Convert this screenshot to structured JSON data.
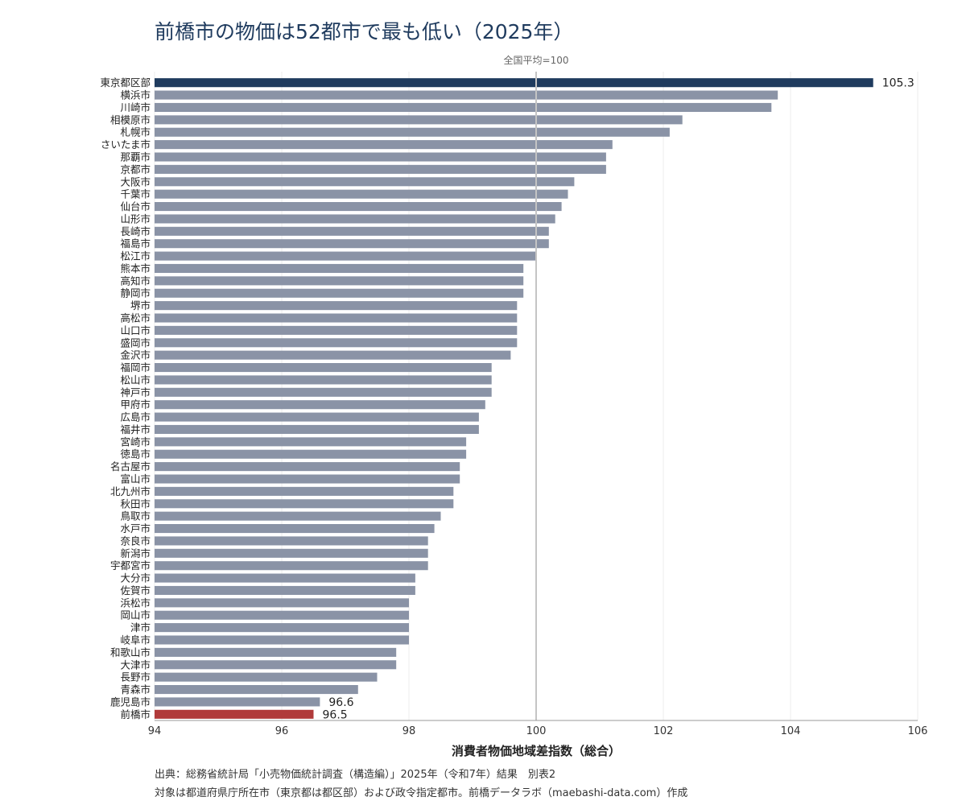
{
  "chart_data": {
    "type": "bar",
    "orientation": "horizontal",
    "title": "前橋市の物価は52都市で最も低い（2025年）",
    "xlabel": "消費者物価地域差指数（総合）",
    "ylabel": "",
    "xlim": [
      94,
      106
    ],
    "xticks": [
      "94",
      "96",
      "98",
      "100",
      "102",
      "104",
      "106"
    ],
    "grid": true,
    "reference_line": {
      "value": 100,
      "label": "全国平均=100"
    },
    "categories": [
      "東京都区部",
      "横浜市",
      "川崎市",
      "相模原市",
      "札幌市",
      "さいたま市",
      "那覇市",
      "京都市",
      "大阪市",
      "千葉市",
      "仙台市",
      "山形市",
      "長崎市",
      "福島市",
      "松江市",
      "熊本市",
      "高知市",
      "静岡市",
      "堺市",
      "高松市",
      "山口市",
      "盛岡市",
      "金沢市",
      "福岡市",
      "松山市",
      "神戸市",
      "甲府市",
      "広島市",
      "福井市",
      "宮崎市",
      "徳島市",
      "名古屋市",
      "富山市",
      "北九州市",
      "秋田市",
      "鳥取市",
      "水戸市",
      "奈良市",
      "新潟市",
      "宇都宮市",
      "大分市",
      "佐賀市",
      "浜松市",
      "岡山市",
      "津市",
      "岐阜市",
      "和歌山市",
      "大津市",
      "長野市",
      "青森市",
      "鹿児島市",
      "前橋市"
    ],
    "values": [
      105.3,
      103.8,
      103.7,
      102.3,
      102.1,
      101.2,
      101.1,
      101.1,
      100.6,
      100.5,
      100.4,
      100.3,
      100.2,
      100.2,
      100.0,
      99.8,
      99.8,
      99.8,
      99.7,
      99.7,
      99.7,
      99.7,
      99.6,
      99.3,
      99.3,
      99.3,
      99.2,
      99.1,
      99.1,
      98.9,
      98.9,
      98.8,
      98.8,
      98.7,
      98.7,
      98.5,
      98.4,
      98.3,
      98.3,
      98.3,
      98.1,
      98.1,
      98.0,
      98.0,
      98.0,
      98.0,
      97.8,
      97.8,
      97.5,
      97.2,
      96.6,
      96.5
    ],
    "value_labels": [
      {
        "category": "東京都区部",
        "text": "105.3"
      },
      {
        "category": "鹿児島市",
        "text": "96.6"
      },
      {
        "category": "前橋市",
        "text": "96.5"
      }
    ],
    "colors": {
      "default_bar": "#8a93a6",
      "highlight_top": "#1f3b5e",
      "highlight_target": "#b03a3a",
      "reference_line": "#c4c4c4",
      "grid": "#ececec",
      "title": "#1f3b5e"
    },
    "highlight": {
      "top": "東京都区部",
      "target": "前橋市"
    }
  },
  "footer": {
    "source": "出典：総務省統計局「小売物価統計調査（構造編）」2025年（令和7年）結果　別表2",
    "note": "対象は都道府県庁所在市（東京都は都区部）および政令指定都市。前橋データラボ（maebashi-data.com）作成"
  }
}
